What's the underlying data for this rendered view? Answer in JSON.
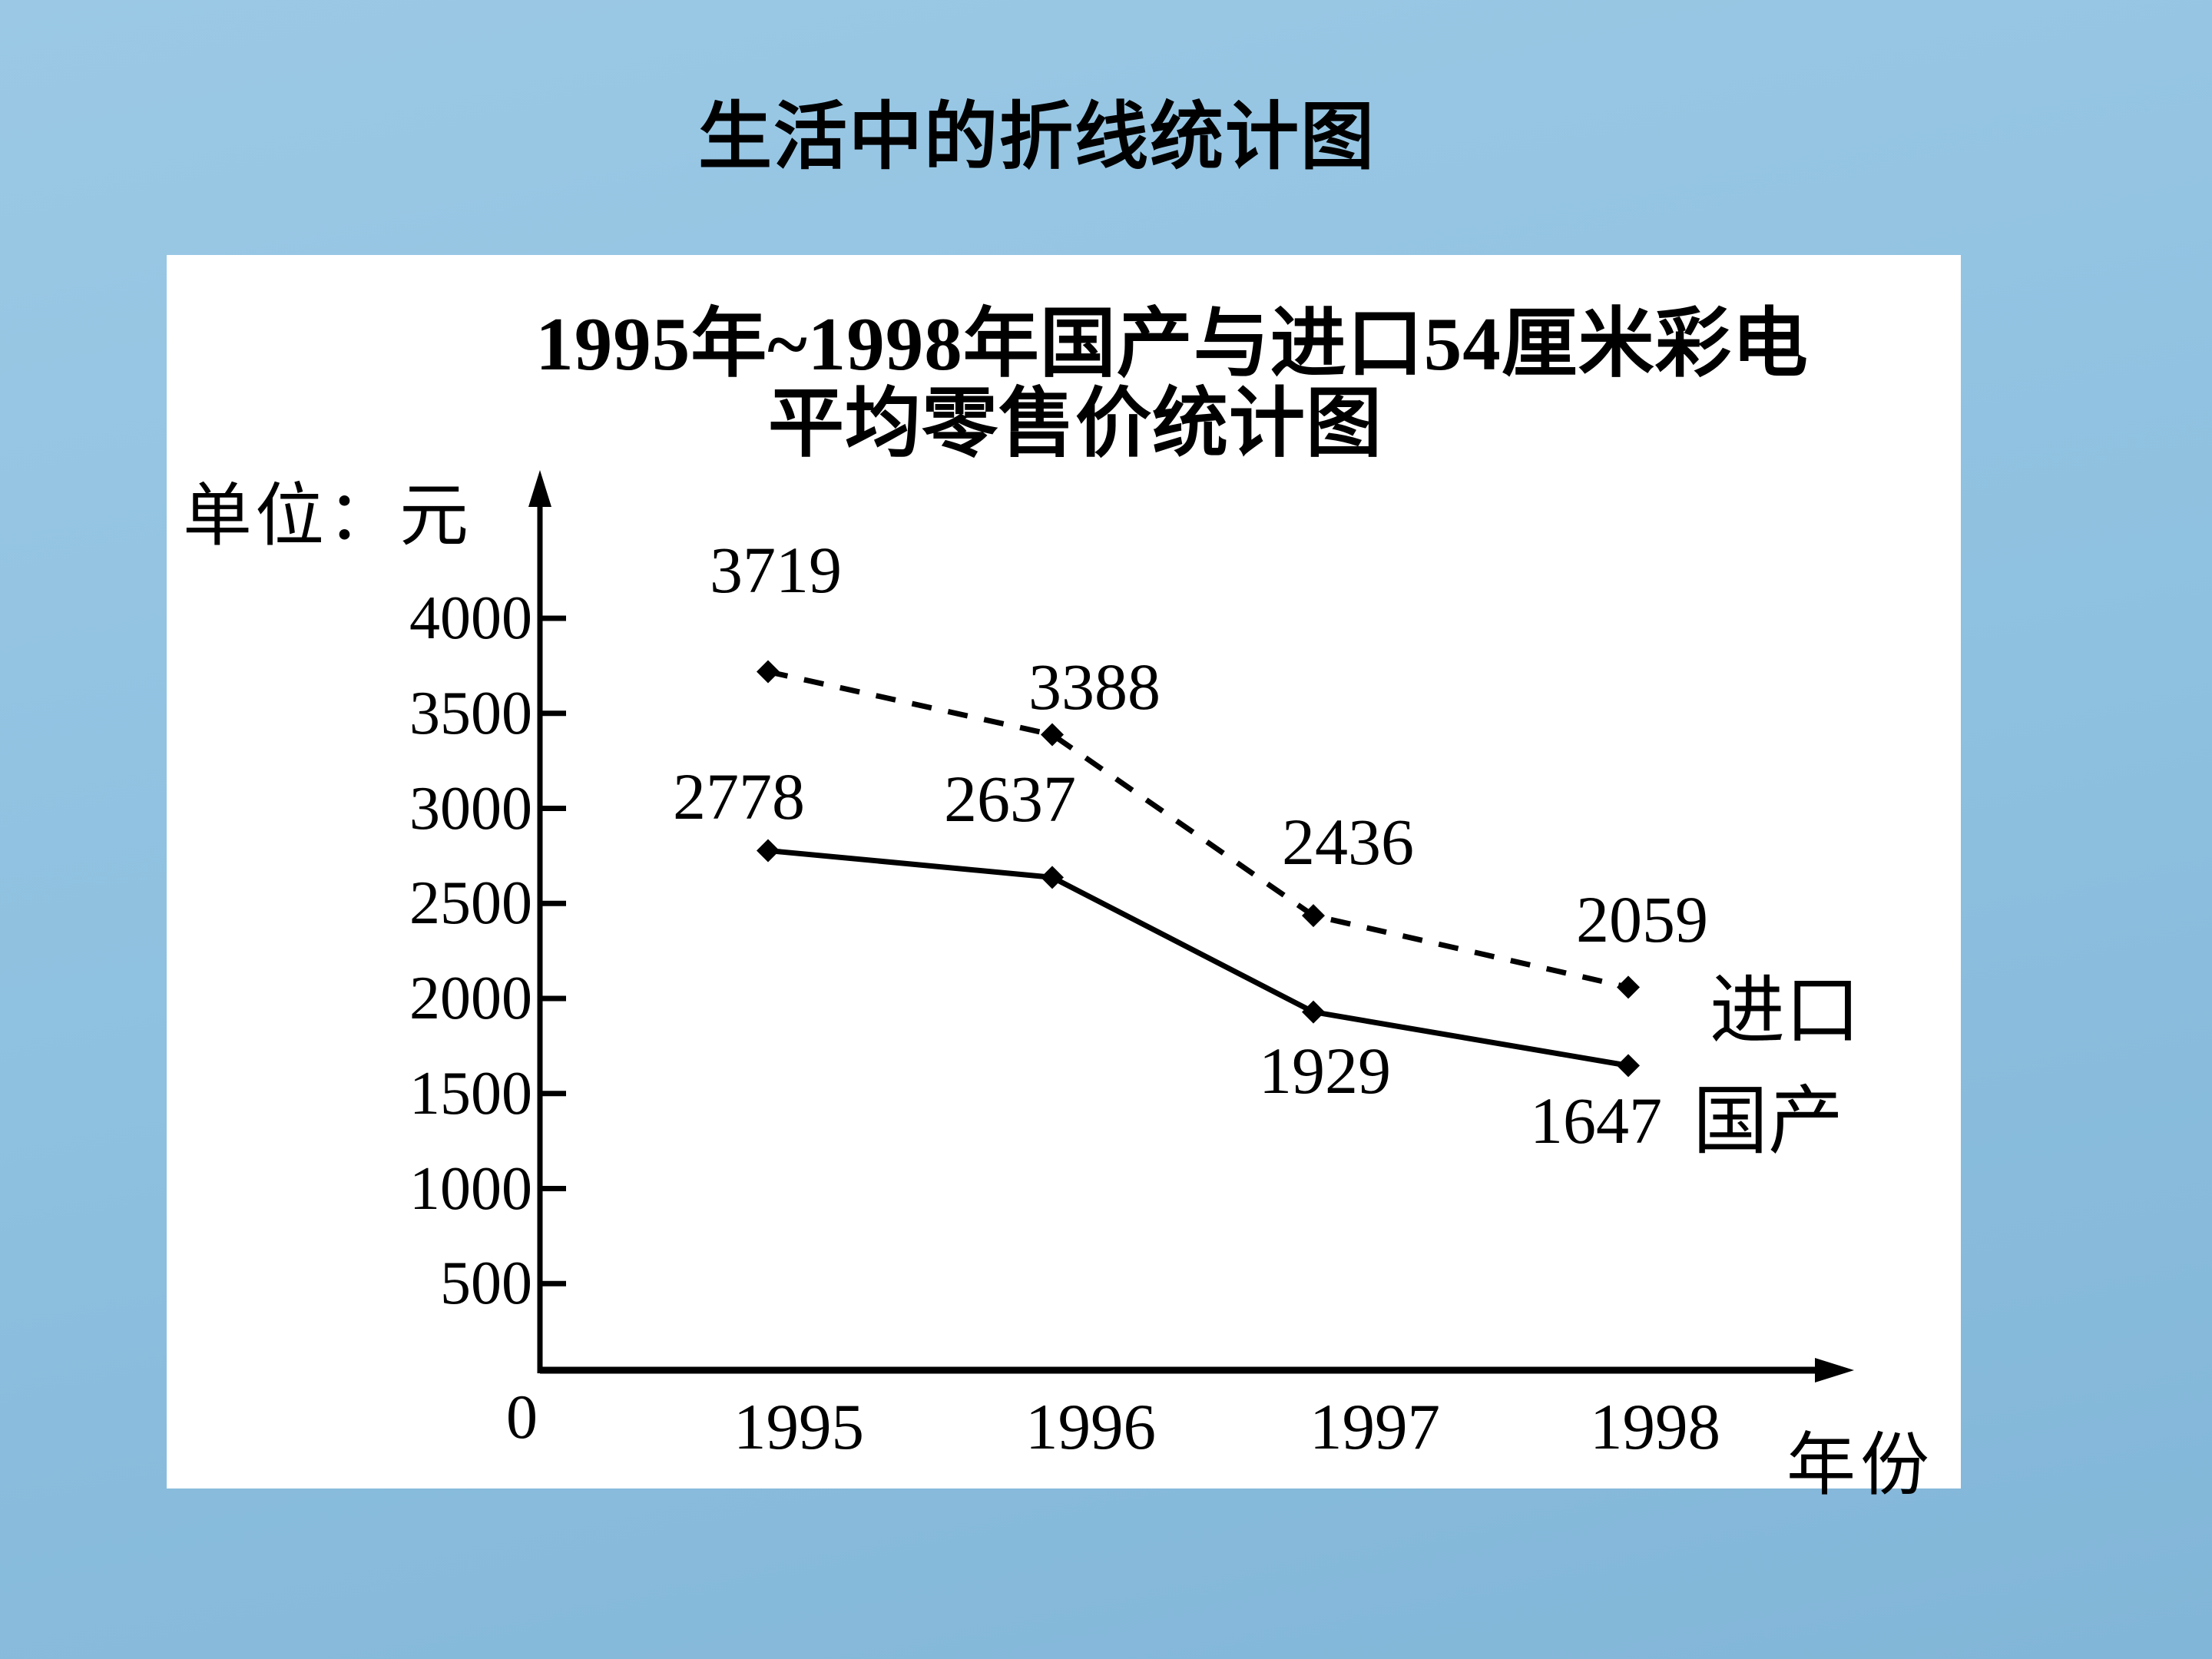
{
  "slide": {
    "title": "生活中的折线统计图"
  },
  "chart": {
    "title_line1": "1995年~1998年国产与进口54厘米彩电",
    "title_line2": "平均零售价统计图",
    "y_axis_unit": "单位：元",
    "x_axis_label": "年份",
    "origin_label": "0",
    "y_ticks": [
      "4000",
      "3500",
      "3000",
      "2500",
      "2000",
      "1500",
      "1000",
      "500"
    ],
    "x_ticks": [
      "1995",
      "1996",
      "1997",
      "1998"
    ]
  },
  "chart_data": {
    "type": "line",
    "title": "1995年~1998年国产与进口54厘米彩电平均零售价统计图",
    "xlabel": "年份",
    "ylabel": "单位：元",
    "categories": [
      "1995",
      "1996",
      "1997",
      "1998"
    ],
    "series": [
      {
        "name": "进口",
        "style": "dashed",
        "marker": "diamond",
        "values": [
          3719,
          3388,
          2436,
          2059
        ]
      },
      {
        "name": "国产",
        "style": "solid",
        "marker": "diamond",
        "values": [
          2778,
          2637,
          1929,
          1647
        ]
      }
    ],
    "ylim": [
      0,
      4300
    ],
    "y_tick_step": 500,
    "grid": false,
    "legend_position": "right of line ends"
  },
  "colors": {
    "background_top": "#9bc9e5",
    "background_bottom": "#82b6d8",
    "panel": "#ffffff",
    "ink": "#000000"
  }
}
